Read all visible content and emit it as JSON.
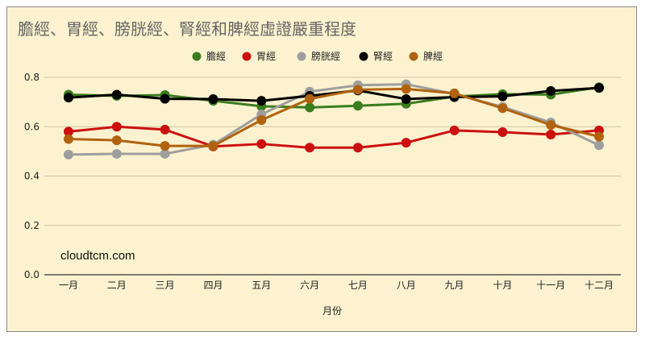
{
  "chart_data": {
    "type": "line",
    "title": "膽經、胃經、膀胱經、腎經和脾經虛證嚴重程度",
    "xlabel": "月份",
    "ylabel": "",
    "ylim": [
      0,
      0.8
    ],
    "yticks": [
      "0.0",
      "0.2",
      "0.4",
      "0.6",
      "0.8"
    ],
    "categories": [
      "一月",
      "二月",
      "三月",
      "四月",
      "五月",
      "六月",
      "七月",
      "八月",
      "九月",
      "十月",
      "十一月",
      "十二月"
    ],
    "legend_position": "top-center",
    "grid": true,
    "annotation": "cloudtcm.com",
    "series": [
      {
        "name": "膽經",
        "color": "#3a7d1e",
        "values": [
          0.73,
          0.725,
          0.728,
          0.705,
          0.683,
          0.678,
          0.685,
          0.693,
          0.722,
          0.732,
          0.73,
          0.76
        ]
      },
      {
        "name": "胃經",
        "color": "#cc1010",
        "values": [
          0.58,
          0.6,
          0.588,
          0.52,
          0.53,
          0.515,
          0.515,
          0.535,
          0.585,
          0.578,
          0.568,
          0.585
        ]
      },
      {
        "name": "膀胱經",
        "color": "#9e9e9e",
        "values": [
          0.487,
          0.49,
          0.49,
          0.527,
          0.65,
          0.742,
          0.768,
          0.772,
          0.733,
          0.68,
          0.617,
          0.525
        ]
      },
      {
        "name": "腎經",
        "color": "#000000",
        "values": [
          0.718,
          0.73,
          0.713,
          0.712,
          0.705,
          0.725,
          0.747,
          0.712,
          0.72,
          0.723,
          0.745,
          0.757
        ]
      },
      {
        "name": "脾經",
        "color": "#b0620e",
        "values": [
          0.55,
          0.545,
          0.522,
          0.522,
          0.627,
          0.713,
          0.75,
          0.753,
          0.735,
          0.675,
          0.607,
          0.56
        ]
      }
    ]
  }
}
